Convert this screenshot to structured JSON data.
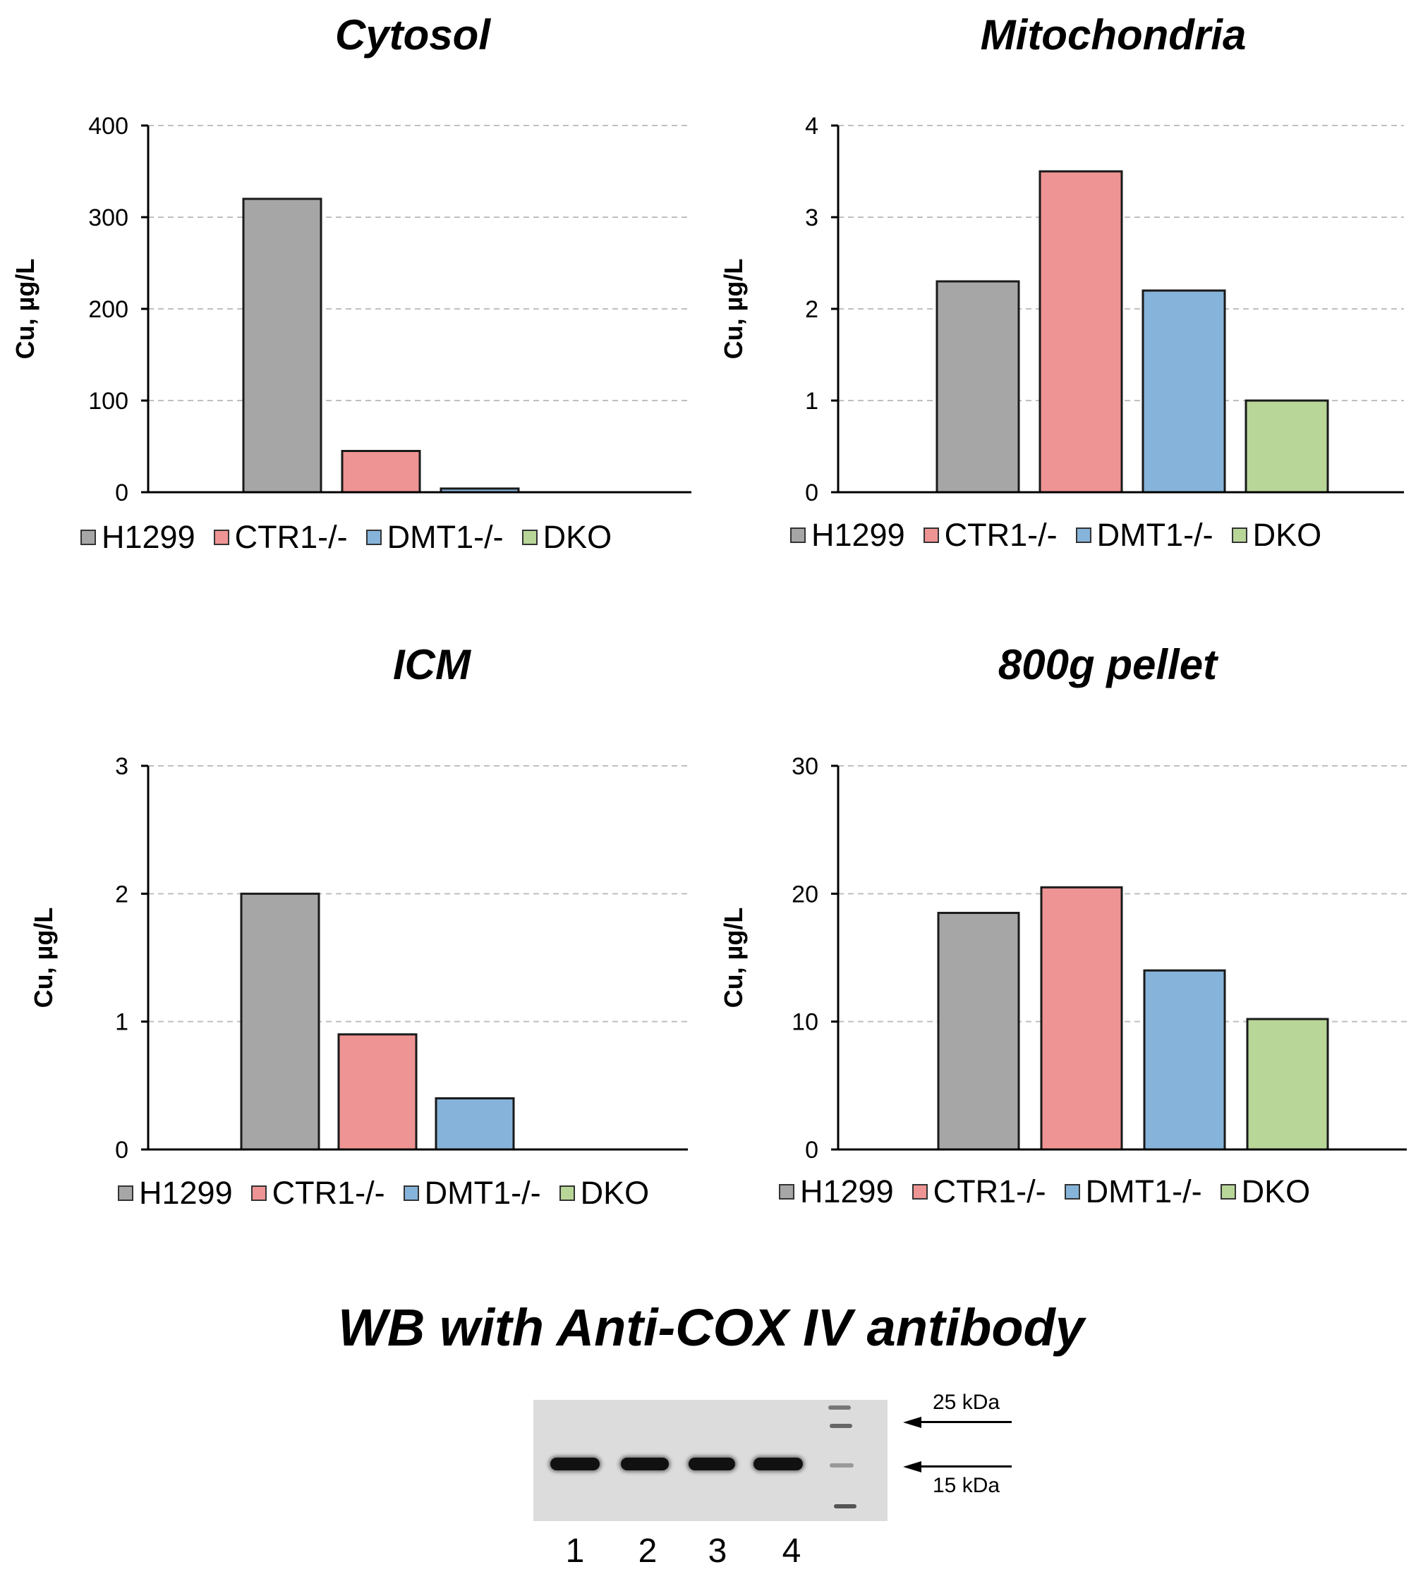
{
  "colors": {
    "H1299": "#a6a6a6",
    "CTR1": "#ef9494",
    "DMT1": "#86b3d9",
    "DKO": "#b8d698",
    "bar_edge": "#1a1a1a",
    "grid": "#bfbfbf",
    "axis": "#000000"
  },
  "legend_labels": [
    "H1299",
    "CTR1-/-",
    "DMT1-/-",
    "DKO"
  ],
  "chart_data": [
    {
      "type": "bar",
      "title": "Cytosol",
      "xlabel": "",
      "ylabel": "Cu, µg/L",
      "categories": [
        "H1299",
        "CTR1-/-",
        "DMT1-/-",
        "DKO"
      ],
      "values": [
        320,
        45,
        4,
        0
      ],
      "ylim": [
        0,
        400
      ],
      "yticks": [
        0,
        100,
        200,
        300,
        400
      ],
      "grid": true,
      "legend": "bottom"
    },
    {
      "type": "bar",
      "title": "Mitochondria",
      "xlabel": "",
      "ylabel": "Cu, µg/L",
      "categories": [
        "H1299",
        "CTR1-/-",
        "DMT1-/-",
        "DKO"
      ],
      "values": [
        2.3,
        3.5,
        2.2,
        1.0
      ],
      "ylim": [
        0,
        4
      ],
      "yticks": [
        0,
        1,
        2,
        3,
        4
      ],
      "grid": true,
      "legend": "bottom"
    },
    {
      "type": "bar",
      "title": "ICM",
      "xlabel": "",
      "ylabel": "Cu, µg/L",
      "categories": [
        "H1299",
        "CTR1-/-",
        "DMT1-/-",
        "DKO"
      ],
      "values": [
        2.0,
        0.9,
        0.4,
        0
      ],
      "ylim": [
        0,
        3
      ],
      "yticks": [
        0,
        1,
        2,
        3
      ],
      "grid": true,
      "legend": "bottom"
    },
    {
      "type": "bar",
      "title": "800g pellet",
      "xlabel": "",
      "ylabel": "Cu, µg/L",
      "categories": [
        "H1299",
        "CTR1-/-",
        "DMT1-/-",
        "DKO"
      ],
      "values": [
        18.5,
        20.5,
        14,
        10.2
      ],
      "ylim": [
        0,
        30
      ],
      "yticks": [
        0,
        10,
        20,
        30
      ],
      "grid": true,
      "legend": "bottom"
    }
  ],
  "western_blot": {
    "title": "WB with Anti-COX IV antibody",
    "lanes": [
      "1",
      "2",
      "3",
      "4"
    ],
    "markers": [
      "25 kDa",
      "15 kDa"
    ]
  }
}
